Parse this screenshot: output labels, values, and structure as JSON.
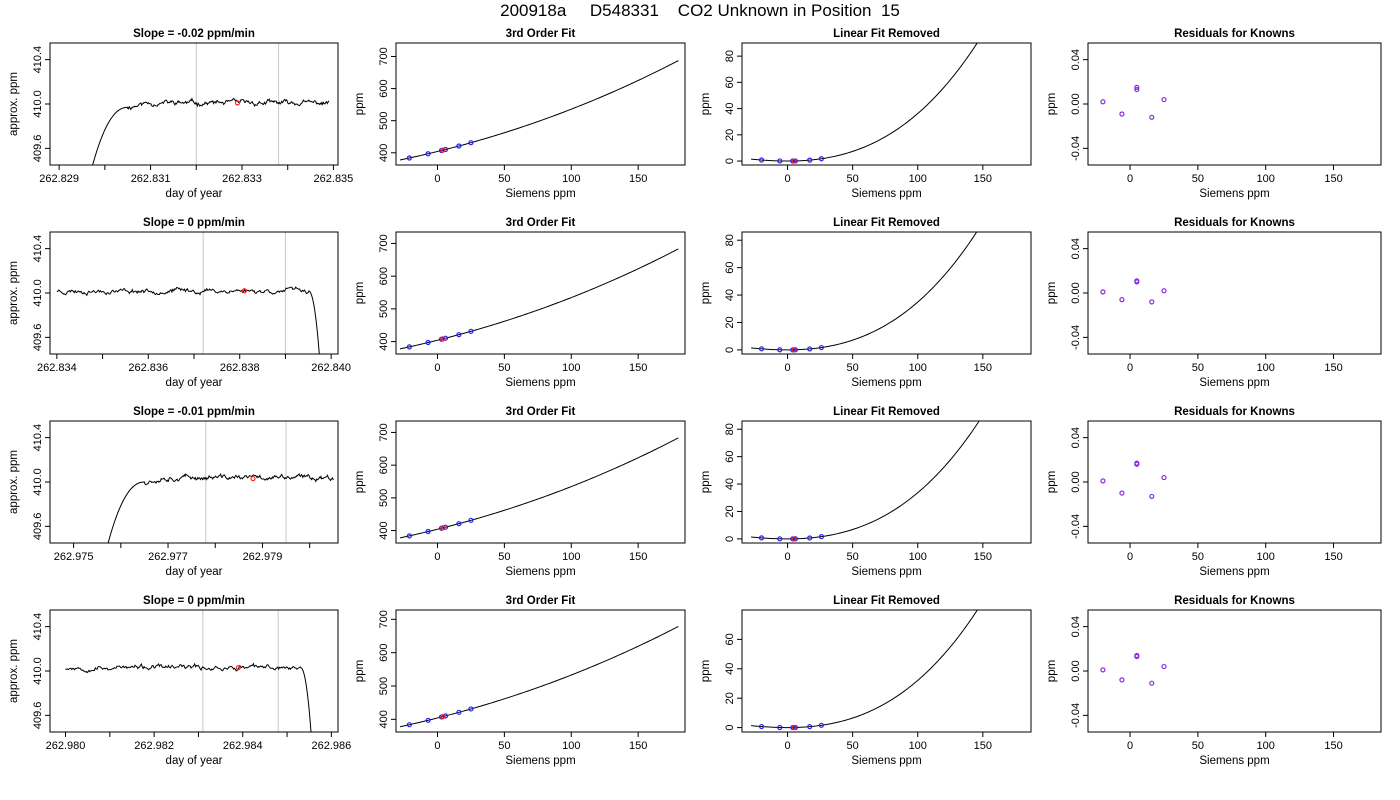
{
  "page": {
    "title": "200918a     D548331    CO2 Unknown in Position  15"
  },
  "colors": {
    "trace": "#000000",
    "unknown_point": "#ff2020",
    "known_point": "#2020ff",
    "residual_point": "#8a2be2",
    "window_line": "#c8c8c8",
    "frame": "#000000"
  },
  "chart_data": [
    {
      "type": "line",
      "row": 0,
      "title": "Slope =  -0.02  ppm/min",
      "xlabel": "day of year",
      "ylabel": "approx. ppm",
      "xlim": [
        262.8288,
        262.8351
      ],
      "ylim": [
        409.45,
        410.55
      ],
      "xticks": [
        262.829,
        262.83,
        262.831,
        262.832,
        262.833,
        262.834,
        262.835
      ],
      "xtick_labels": [
        "262.829",
        "",
        "262.831",
        "",
        "262.833",
        "",
        "262.835"
      ],
      "yticks": [
        409.6,
        410.0,
        410.4
      ],
      "ytick_labels": [
        "409.6",
        "410.0",
        "410.4"
      ],
      "window": [
        262.832,
        262.8338
      ],
      "rise": {
        "x0": 262.8297,
        "x1": 262.8305
      },
      "trace": {
        "x_start": 262.8297,
        "x_end": 262.8349,
        "plateau": 410.01,
        "noise": 0.02,
        "seed": 11,
        "end": "flat"
      },
      "unknown_point": {
        "x": 262.8329,
        "y": 410.01
      }
    },
    {
      "type": "line",
      "row": 0,
      "title": "3rd Order Fit",
      "xlabel": "Siemens ppm",
      "ylabel": "ppm",
      "xlim": [
        -31,
        185
      ],
      "ylim": [
        362,
        742
      ],
      "xticks": [
        0,
        50,
        100,
        150
      ],
      "yticks": [
        400,
        500,
        600,
        700
      ],
      "curve": {
        "x0": -28,
        "x1": 180,
        "a": 404.1,
        "b": 1.025,
        "c": 0.00278,
        "d": 1.45e-06
      },
      "knowns_x": [
        -21,
        -7,
        3,
        6,
        16,
        25
      ],
      "unknown_x": [
        4
      ]
    },
    {
      "type": "line",
      "row": 0,
      "title": "Linear Fit Removed",
      "xlabel": "Siemens ppm",
      "ylabel": "ppm",
      "xlim": [
        -35,
        187
      ],
      "ylim": [
        -3,
        90
      ],
      "xticks": [
        0,
        50,
        100,
        150
      ],
      "yticks": [
        0,
        20,
        40,
        60,
        80
      ],
      "curve": {
        "x0": -28,
        "x1": 180,
        "a": 0,
        "b": 0,
        "c": 0.00227,
        "d": 1.353e-05
      },
      "knowns_x": [
        -20,
        -6,
        4,
        6,
        17,
        26
      ],
      "unknown_x": [
        5
      ]
    },
    {
      "type": "scatter",
      "row": 0,
      "title": "Residuals for Knowns",
      "xlabel": "Siemens ppm",
      "ylabel": "ppm",
      "xlim": [
        -31,
        185
      ],
      "ylim": [
        -0.055,
        0.055
      ],
      "xticks": [
        0,
        50,
        100,
        150
      ],
      "yticks": [
        -0.04,
        0.0,
        0.04
      ],
      "ytick_labels": [
        "-0.04",
        "0.00",
        "0.04"
      ],
      "points": [
        {
          "x": -20,
          "y": 0.002
        },
        {
          "x": -6,
          "y": -0.009
        },
        {
          "x": 5,
          "y": 0.015
        },
        {
          "x": 5,
          "y": 0.013
        },
        {
          "x": 16,
          "y": -0.012
        },
        {
          "x": 25,
          "y": 0.004
        }
      ]
    },
    {
      "type": "line",
      "row": 1,
      "title": "Slope =  0  ppm/min",
      "xlabel": "day of year",
      "ylabel": "approx. ppm",
      "xlim": [
        262.83385,
        262.84015
      ],
      "ylim": [
        409.45,
        410.55
      ],
      "xticks": [
        262.834,
        262.835,
        262.836,
        262.837,
        262.838,
        262.839,
        262.84
      ],
      "xtick_labels": [
        "262.834",
        "",
        "262.836",
        "",
        "262.838",
        "",
        "262.840"
      ],
      "yticks": [
        409.6,
        410.0,
        410.4
      ],
      "ytick_labels": [
        "409.6",
        "410.0",
        "410.4"
      ],
      "window": [
        262.8372,
        262.839
      ],
      "fall": {
        "x0": 262.8395,
        "x1": 262.83975
      },
      "trace": {
        "x_start": 262.834,
        "x_end": 262.8395,
        "plateau": 410.02,
        "noise": 0.02,
        "seed": 23,
        "end": "fall"
      },
      "unknown_point": {
        "x": 262.8381,
        "y": 410.02
      }
    },
    {
      "type": "line",
      "row": 1,
      "title": "3rd Order Fit",
      "xlabel": "Siemens ppm",
      "ylabel": "ppm",
      "xlim": [
        -31,
        185
      ],
      "ylim": [
        362,
        735
      ],
      "xticks": [
        0,
        50,
        100,
        150
      ],
      "yticks": [
        400,
        500,
        600,
        700
      ],
      "curve": {
        "x0": -28,
        "x1": 180,
        "a": 404.1,
        "b": 1.02,
        "c": 0.0027,
        "d": 1.4e-06
      },
      "knowns_x": [
        -21,
        -7,
        3,
        6,
        16,
        25
      ],
      "unknown_x": [
        4
      ]
    },
    {
      "type": "line",
      "row": 1,
      "title": "Linear Fit Removed",
      "xlabel": "Siemens ppm",
      "ylabel": "ppm",
      "xlim": [
        -35,
        187
      ],
      "ylim": [
        -3,
        86
      ],
      "xticks": [
        0,
        50,
        100,
        150
      ],
      "yticks": [
        0,
        20,
        40,
        60,
        80
      ],
      "curve": {
        "x0": -28,
        "x1": 180,
        "a": 0,
        "b": 0,
        "c": 0.0022,
        "d": 1.29e-05
      },
      "knowns_x": [
        -20,
        -6,
        4,
        6,
        17,
        26
      ],
      "unknown_x": [
        5
      ]
    },
    {
      "type": "scatter",
      "row": 1,
      "title": "Residuals for Knowns",
      "xlabel": "Siemens ppm",
      "ylabel": "ppm",
      "xlim": [
        -31,
        185
      ],
      "ylim": [
        -0.055,
        0.055
      ],
      "xticks": [
        0,
        50,
        100,
        150
      ],
      "yticks": [
        -0.04,
        0.0,
        0.04
      ],
      "ytick_labels": [
        "-0.04",
        "0.00",
        "0.04"
      ],
      "points": [
        {
          "x": -20,
          "y": 0.001
        },
        {
          "x": -6,
          "y": -0.006
        },
        {
          "x": 5,
          "y": 0.011
        },
        {
          "x": 5,
          "y": 0.01
        },
        {
          "x": 16,
          "y": -0.008
        },
        {
          "x": 25,
          "y": 0.002
        }
      ]
    },
    {
      "type": "line",
      "row": 2,
      "title": "Slope =  -0.01  ppm/min",
      "xlabel": "day of year",
      "ylabel": "approx. ppm",
      "xlim": [
        262.9745,
        262.9806
      ],
      "ylim": [
        409.45,
        410.55
      ],
      "xticks": [
        262.975,
        262.976,
        262.977,
        262.978,
        262.979,
        262.98
      ],
      "xtick_labels": [
        "262.975",
        "",
        "262.977",
        "",
        "262.979",
        ""
      ],
      "yticks": [
        409.6,
        410.0,
        410.4
      ],
      "ytick_labels": [
        "409.6",
        "410.0",
        "410.4"
      ],
      "window": [
        262.9778,
        262.9795
      ],
      "rise": {
        "x0": 262.9757,
        "x1": 262.9765
      },
      "trace": {
        "x_start": 262.9757,
        "x_end": 262.9805,
        "plateau": 410.04,
        "noise": 0.02,
        "seed": 37,
        "end": "flat"
      },
      "unknown_point": {
        "x": 262.9788,
        "y": 410.03
      }
    },
    {
      "type": "line",
      "row": 2,
      "title": "3rd Order Fit",
      "xlabel": "Siemens ppm",
      "ylabel": "ppm",
      "xlim": [
        -31,
        185
      ],
      "ylim": [
        362,
        735
      ],
      "xticks": [
        0,
        50,
        100,
        150
      ],
      "yticks": [
        400,
        500,
        600,
        700
      ],
      "curve": {
        "x0": -28,
        "x1": 180,
        "a": 404.1,
        "b": 1.02,
        "c": 0.0027,
        "d": 1.4e-06
      },
      "knowns_x": [
        -21,
        -7,
        3,
        6,
        16,
        25
      ],
      "unknown_x": [
        4
      ]
    },
    {
      "type": "line",
      "row": 2,
      "title": "Linear Fit Removed",
      "xlabel": "Siemens ppm",
      "ylabel": "ppm",
      "xlim": [
        -35,
        187
      ],
      "ylim": [
        -3,
        86
      ],
      "xticks": [
        0,
        50,
        100,
        150
      ],
      "yticks": [
        0,
        20,
        40,
        60,
        80
      ],
      "curve": {
        "x0": -28,
        "x1": 180,
        "a": 0,
        "b": 0,
        "c": 0.0021,
        "d": 1.27e-05
      },
      "knowns_x": [
        -20,
        -6,
        4,
        6,
        17,
        26
      ],
      "unknown_x": [
        5
      ]
    },
    {
      "type": "scatter",
      "row": 2,
      "title": "Residuals for Knowns",
      "xlabel": "Siemens ppm",
      "ylabel": "ppm",
      "xlim": [
        -31,
        185
      ],
      "ylim": [
        -0.055,
        0.055
      ],
      "xticks": [
        0,
        50,
        100,
        150
      ],
      "yticks": [
        -0.04,
        0.0,
        0.04
      ],
      "ytick_labels": [
        "-0.04",
        "0.00",
        "0.04"
      ],
      "points": [
        {
          "x": -20,
          "y": 0.001
        },
        {
          "x": -6,
          "y": -0.01
        },
        {
          "x": 5,
          "y": 0.017
        },
        {
          "x": 5,
          "y": 0.016
        },
        {
          "x": 16,
          "y": -0.013
        },
        {
          "x": 25,
          "y": 0.004
        }
      ]
    },
    {
      "type": "line",
      "row": 3,
      "title": "Slope =  0  ppm/min",
      "xlabel": "day of year",
      "ylabel": "approx. ppm",
      "xlim": [
        262.97965,
        262.98615
      ],
      "ylim": [
        409.45,
        410.55
      ],
      "xticks": [
        262.98,
        262.981,
        262.982,
        262.983,
        262.984,
        262.985,
        262.986
      ],
      "xtick_labels": [
        "262.980",
        "",
        "262.982",
        "",
        "262.984",
        "",
        "262.986"
      ],
      "yticks": [
        409.6,
        410.0,
        410.4
      ],
      "ytick_labels": [
        "409.6",
        "410.0",
        "410.4"
      ],
      "window": [
        262.9831,
        262.9848
      ],
      "fall": {
        "x0": 262.9853,
        "x1": 262.98555
      },
      "trace": {
        "x_start": 262.98,
        "x_end": 262.9853,
        "plateau": 410.03,
        "noise": 0.02,
        "seed": 53,
        "end": "fall"
      },
      "unknown_point": {
        "x": 262.9839,
        "y": 410.03
      }
    },
    {
      "type": "line",
      "row": 3,
      "title": "3rd Order Fit",
      "xlabel": "Siemens ppm",
      "ylabel": "ppm",
      "xlim": [
        -31,
        185
      ],
      "ylim": [
        362,
        728
      ],
      "xticks": [
        0,
        50,
        100,
        150
      ],
      "yticks": [
        400,
        500,
        600,
        700
      ],
      "curve": {
        "x0": -28,
        "x1": 180,
        "a": 404.1,
        "b": 1.015,
        "c": 0.0026,
        "d": 1.3e-06
      },
      "knowns_x": [
        -21,
        -7,
        3,
        6,
        16,
        25
      ],
      "unknown_x": [
        4
      ]
    },
    {
      "type": "line",
      "row": 3,
      "title": "Linear Fit Removed",
      "xlabel": "Siemens ppm",
      "ylabel": "ppm",
      "xlim": [
        -35,
        187
      ],
      "ylim": [
        -3,
        80
      ],
      "xticks": [
        0,
        50,
        100,
        150
      ],
      "yticks": [
        0,
        20,
        40,
        60
      ],
      "curve": {
        "x0": -28,
        "x1": 180,
        "a": 0,
        "b": 0,
        "c": 0.002,
        "d": 1.21e-05
      },
      "knowns_x": [
        -20,
        -6,
        4,
        6,
        17,
        26
      ],
      "unknown_x": [
        5
      ]
    },
    {
      "type": "scatter",
      "row": 3,
      "title": "Residuals for Knowns",
      "xlabel": "Siemens ppm",
      "ylabel": "ppm",
      "xlim": [
        -31,
        185
      ],
      "ylim": [
        -0.055,
        0.055
      ],
      "xticks": [
        0,
        50,
        100,
        150
      ],
      "yticks": [
        -0.04,
        0.0,
        0.04
      ],
      "ytick_labels": [
        "-0.04",
        "0.00",
        "0.04"
      ],
      "points": [
        {
          "x": -20,
          "y": 0.001
        },
        {
          "x": -6,
          "y": -0.008
        },
        {
          "x": 5,
          "y": 0.014
        },
        {
          "x": 5,
          "y": 0.013
        },
        {
          "x": 16,
          "y": -0.011
        },
        {
          "x": 25,
          "y": 0.004
        }
      ]
    }
  ]
}
